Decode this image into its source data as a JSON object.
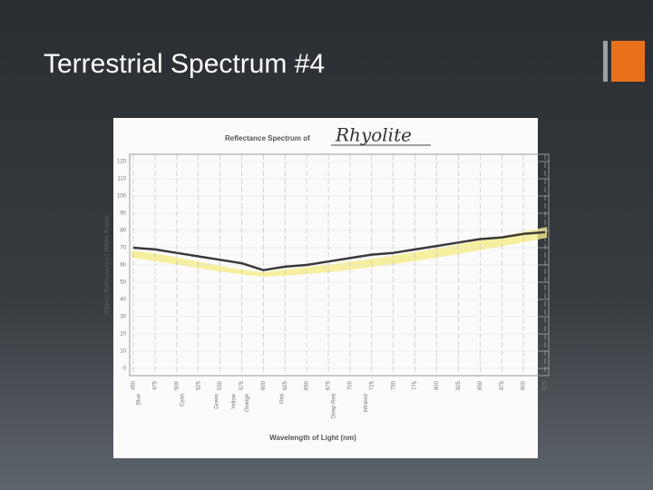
{
  "slide_title": "Terrestrial Spectrum #4",
  "chart_data": {
    "type": "line",
    "title": "Reflectance Spectrum of",
    "subject": "Rhyolite",
    "x_label": "Wavelength of Light (nm)",
    "y_label": "Object Reflectance / White Paper",
    "x": [
      450,
      475,
      500,
      525,
      550,
      575,
      600,
      625,
      650,
      675,
      700,
      725,
      750,
      775,
      800,
      825,
      850,
      875,
      900,
      925
    ],
    "series": [
      {
        "name": "Rhyolite",
        "color": "#3a3a3a",
        "values": [
          70,
          69,
          67,
          65,
          63,
          61,
          57,
          59,
          60,
          62,
          64,
          66,
          67,
          69,
          71,
          73,
          75,
          76,
          78,
          79
        ]
      }
    ],
    "xlim": [
      450,
      925
    ],
    "xticks": [
      450,
      475,
      500,
      525,
      550,
      575,
      600,
      625,
      650,
      675,
      700,
      725,
      750,
      775,
      800,
      825,
      850,
      875,
      900,
      925
    ],
    "ylim": [
      0,
      120
    ],
    "yticks": [
      0,
      10,
      20,
      30,
      40,
      50,
      60,
      70,
      80,
      90,
      100,
      110,
      120
    ],
    "band_labels": [
      {
        "label": "Blue",
        "x": 450
      },
      {
        "label": "Cyan",
        "x": 500
      },
      {
        "label": "Green",
        "x": 540
      },
      {
        "label": "Yellow",
        "x": 560
      },
      {
        "label": "Orange",
        "x": 575
      },
      {
        "label": "Red",
        "x": 615
      },
      {
        "label": "Deep Red",
        "x": 675
      },
      {
        "label": "Infrared",
        "x": 712
      }
    ],
    "grid": true
  }
}
